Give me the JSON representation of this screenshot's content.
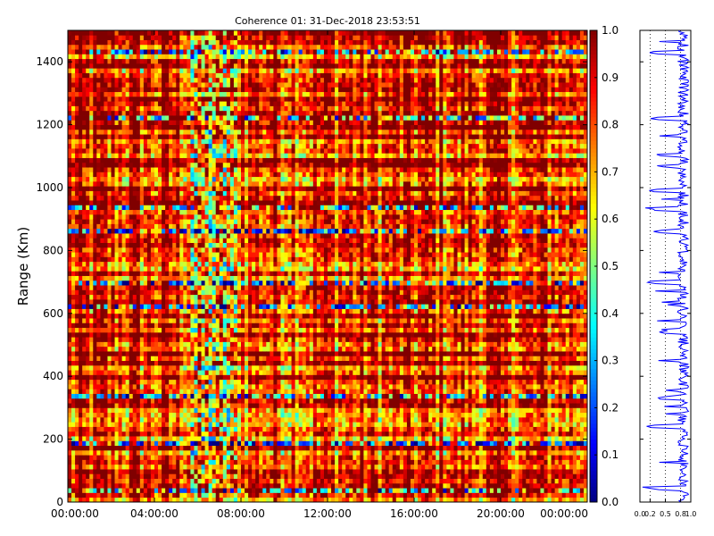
{
  "chart_data": [
    {
      "type": "heatmap",
      "title": "Coherence 01: 31-Dec-2018 23:53:51",
      "ylabel": "Range (Km)",
      "xlabel": "",
      "x_tick_labels": [
        "00:00:00",
        "04:00:00",
        "08:00:00",
        "12:00:00",
        "16:00:00",
        "20:00:00",
        "00:00:00"
      ],
      "x_range_hours": [
        0,
        24
      ],
      "y_ticks": [
        0,
        200,
        400,
        600,
        800,
        1000,
        1200,
        1400
      ],
      "ylim": [
        0,
        1500
      ],
      "colorbar": {
        "ticks": [
          "0.0",
          "0.1",
          "0.2",
          "0.3",
          "0.4",
          "0.5",
          "0.6",
          "0.7",
          "0.8",
          "0.9",
          "1.0"
        ],
        "range": [
          0,
          1
        ],
        "colormap": "jet"
      },
      "dominant_value": 0.85,
      "low_coherence_ranges_km": [
        30,
        190,
        330,
        620,
        690,
        860,
        930,
        1220,
        1430
      ],
      "low_coherence_times_h": [
        6.5,
        7.0
      ]
    },
    {
      "type": "line",
      "orientation": "vertical profile",
      "x_tick_labels": [
        "0.0",
        "0.2",
        "0.5",
        "0.8",
        "1.0"
      ],
      "xlim": [
        0,
        1
      ],
      "ylim": [
        0,
        1500
      ],
      "line_color": "#0000ff",
      "grid": "dotted vertical",
      "mean_value": 0.85,
      "dips": [
        {
          "range_km": 45,
          "value": 0.15
        },
        {
          "range_km": 240,
          "value": 0.1
        },
        {
          "range_km": 330,
          "value": 0.3
        },
        {
          "range_km": 540,
          "value": 0.35
        },
        {
          "range_km": 700,
          "value": 0.1
        },
        {
          "range_km": 860,
          "value": 0.25
        },
        {
          "range_km": 930,
          "value": 0.2
        },
        {
          "range_km": 990,
          "value": 0.15
        },
        {
          "range_km": 1220,
          "value": 0.2
        },
        {
          "range_km": 1430,
          "value": 0.15
        }
      ]
    }
  ]
}
